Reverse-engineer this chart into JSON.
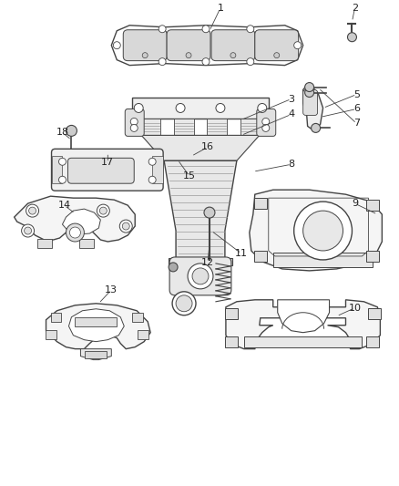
{
  "background_color": "#ffffff",
  "line_color": "#444444",
  "label_color": "#222222",
  "fig_width": 4.38,
  "fig_height": 5.33,
  "dpi": 100
}
